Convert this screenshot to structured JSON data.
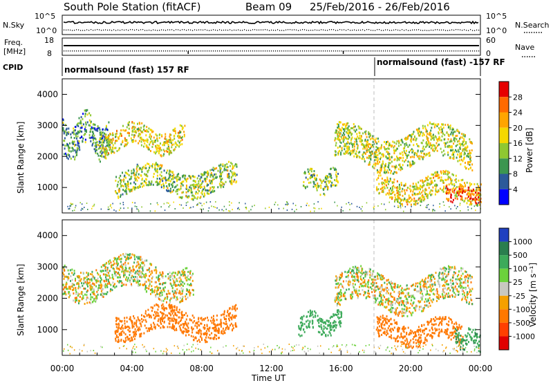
{
  "header": {
    "title": "South Pole Station (fitACF)",
    "beam": "Beam 09",
    "dates": "25/Feb/2016 - 26/Feb/2016"
  },
  "strips": {
    "nsky_label": "N.Sky",
    "nsky_ticks": [
      "10^5",
      "10^0"
    ],
    "nsearch_label": "N.Search",
    "nsearch_ticks": [
      "10^5",
      "10^0"
    ],
    "freq_label_1": "Freq.",
    "freq_label_2": "[MHz]",
    "freq_ticks": [
      "18",
      "8"
    ],
    "nave_label": "Nave",
    "nave_ticks": [
      "60",
      "0"
    ],
    "cpid_label": "CPID",
    "cpid_segments": [
      "normalsound (fast) 157 RF",
      "normalsound (fast) -157 RF"
    ]
  },
  "power_panel": {
    "ylabel": "Slant Range [km]",
    "cbar_label": "Power [dB]",
    "cbar_ticks": [
      "28",
      "24",
      "20",
      "16",
      "12",
      "8",
      "4"
    ],
    "cbar_colors": [
      "#e60000",
      "#ff6a00",
      "#ffa500",
      "#f5d800",
      "#8fc832",
      "#3c9650",
      "#2c5a9a",
      "#0000ff"
    ]
  },
  "velocity_panel": {
    "ylabel": "Slant Range [km]",
    "cbar_label": "Velocity [m s⁻¹]",
    "cbar_ticks": [
      "1000",
      "500",
      "100",
      "25",
      "-25",
      "-100",
      "-500",
      "-1000"
    ],
    "cbar_colors": [
      "#2040c0",
      "#2a7e4e",
      "#3daa5a",
      "#6cd23c",
      "#c8c8c0",
      "#f5a000",
      "#ff7800",
      "#ff4000",
      "#e00000"
    ]
  },
  "xaxis": {
    "ticks": [
      "00:00",
      "04:00",
      "08:00",
      "12:00",
      "16:00",
      "20:00",
      "00:00"
    ],
    "label": "Time UT"
  },
  "chart_data": [
    {
      "type": "heatmap",
      "title": "South Pole Station (fitACF) Beam 09 25/Feb/2016 - 26/Feb/2016",
      "panel": "power",
      "xlabel": "Time UT",
      "ylabel": "Slant Range [km]",
      "xlim_hours": [
        0,
        24
      ],
      "ylim_km": [
        180,
        4500
      ],
      "yticks_km": [
        1000,
        2000,
        3000,
        4000
      ],
      "colorbar": {
        "label": "Power [dB]",
        "ticks": [
          4,
          8,
          12,
          16,
          20,
          24,
          28
        ]
      },
      "regions": [
        {
          "t0": 0.0,
          "t1": 2.7,
          "r0": 1800,
          "r1": 3600,
          "value": 10
        },
        {
          "t0": 2.2,
          "t1": 7.0,
          "r0": 2000,
          "r1": 3200,
          "value": 18
        },
        {
          "t0": 3.0,
          "t1": 10.0,
          "r0": 600,
          "r1": 1900,
          "value": 14
        },
        {
          "t0": 13.8,
          "t1": 15.8,
          "r0": 700,
          "r1": 1700,
          "value": 14
        },
        {
          "t0": 15.6,
          "t1": 23.5,
          "r0": 1400,
          "r1": 3200,
          "value": 16
        },
        {
          "t0": 18.0,
          "t1": 24.0,
          "r0": 400,
          "r1": 1600,
          "value": 18
        },
        {
          "t0": 22.0,
          "t1": 24.0,
          "r0": 500,
          "r1": 1200,
          "value": 27
        }
      ]
    },
    {
      "type": "heatmap",
      "panel": "velocity",
      "xlabel": "Time UT",
      "ylabel": "Slant Range [km]",
      "xlim_hours": [
        0,
        24
      ],
      "ylim_km": [
        180,
        4500
      ],
      "yticks_km": [
        1000,
        2000,
        3000,
        4000
      ],
      "colorbar": {
        "label": "Velocity [m s⁻¹]",
        "ticks": [
          1000,
          500,
          100,
          25,
          -25,
          -100,
          -500,
          -1000
        ]
      },
      "regions": [
        {
          "t0": 0.0,
          "t1": 7.5,
          "r0": 1800,
          "r1": 3500,
          "value": 0
        },
        {
          "t0": 3.0,
          "t1": 10.0,
          "r0": 600,
          "r1": 1900,
          "value": -300
        },
        {
          "t0": 13.5,
          "t1": 16.0,
          "r0": 700,
          "r1": 1700,
          "value": 300
        },
        {
          "t0": 15.6,
          "t1": 23.5,
          "r0": 1400,
          "r1": 3100,
          "value": 0
        },
        {
          "t0": 18.0,
          "t1": 23.0,
          "r0": 400,
          "r1": 1500,
          "value": -300
        },
        {
          "t0": 22.5,
          "t1": 24.0,
          "r0": 300,
          "r1": 1200,
          "value": 400
        }
      ]
    }
  ]
}
